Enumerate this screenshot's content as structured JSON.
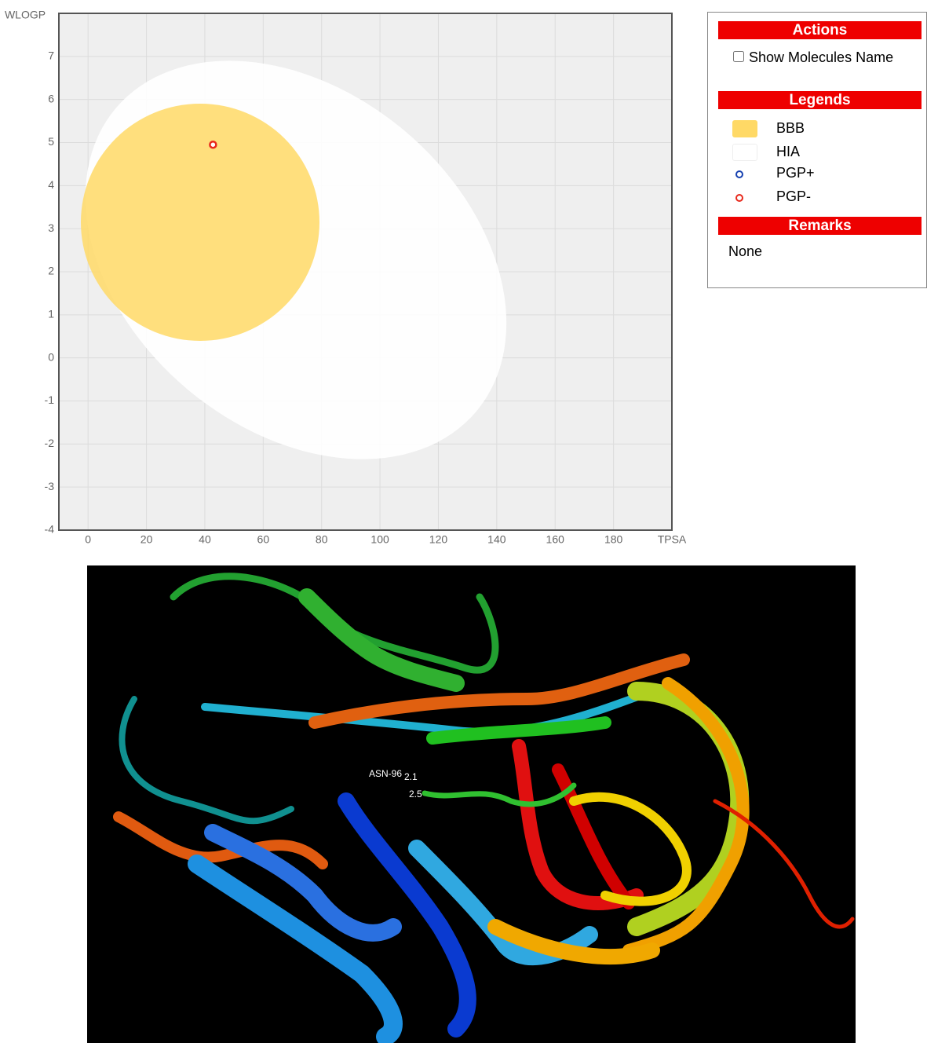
{
  "chart_data": {
    "type": "scatter",
    "x_label": "TPSA",
    "y_label": "WLOGP",
    "xlim": [
      -10,
      200
    ],
    "xticks": [
      0,
      20,
      40,
      60,
      80,
      100,
      120,
      140,
      160,
      180
    ],
    "ylim": [
      -4,
      8
    ],
    "yticks": [
      -4,
      -3,
      -2,
      -1,
      0,
      1,
      2,
      3,
      4,
      5,
      6,
      7
    ],
    "grid": true,
    "regions": [
      {
        "name": "BBB",
        "color": "#ffd966"
      },
      {
        "name": "HIA",
        "color": "#ffffff"
      }
    ],
    "series": [
      {
        "name": "PGP+",
        "color": "#1540b0",
        "x": [],
        "values": []
      },
      {
        "name": "PGP-",
        "color": "#e8291c",
        "x": [
          42.8
        ],
        "values": [
          4.95
        ]
      }
    ]
  },
  "panel": {
    "actions_title": "Actions",
    "checkbox_label": "Show Molecules Name",
    "legends_title": "Legends",
    "remarks_title": "Remarks",
    "remarks": "None"
  },
  "image": {
    "labels": [
      "ASN-96",
      "2.1",
      "2.5"
    ]
  }
}
